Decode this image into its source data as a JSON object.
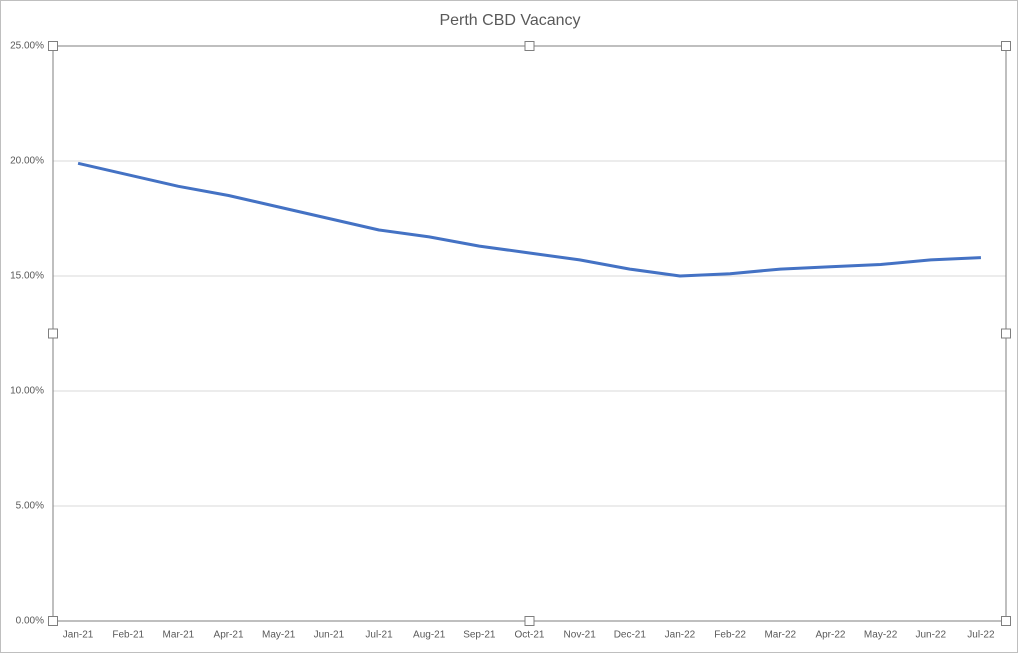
{
  "chart_data": {
    "type": "line",
    "title": "Perth CBD Vacancy",
    "categories": [
      "Jan-21",
      "Feb-21",
      "Mar-21",
      "Apr-21",
      "May-21",
      "Jun-21",
      "Jul-21",
      "Aug-21",
      "Sep-21",
      "Oct-21",
      "Nov-21",
      "Dec-21",
      "Jan-22",
      "Feb-22",
      "Mar-22",
      "Apr-22",
      "May-22",
      "Jun-22",
      "Jul-22"
    ],
    "series": [
      {
        "color": "#4472c4",
        "values": [
          19.9,
          19.4,
          18.9,
          18.5,
          18.0,
          17.5,
          17.0,
          16.7,
          16.3,
          16.0,
          15.7,
          15.3,
          15.0,
          15.1,
          15.3,
          15.4,
          15.5,
          15.7,
          15.8
        ]
      }
    ],
    "ylim": [
      0,
      25
    ],
    "yticks": [
      {
        "value": 0,
        "label": "0.00%"
      },
      {
        "value": 5,
        "label": "5.00%"
      },
      {
        "value": 10,
        "label": "10.00%"
      },
      {
        "value": 15,
        "label": "15.00%"
      },
      {
        "value": 20,
        "label": "20.00%"
      },
      {
        "value": 25,
        "label": "25.00%"
      }
    ],
    "grid": true
  }
}
